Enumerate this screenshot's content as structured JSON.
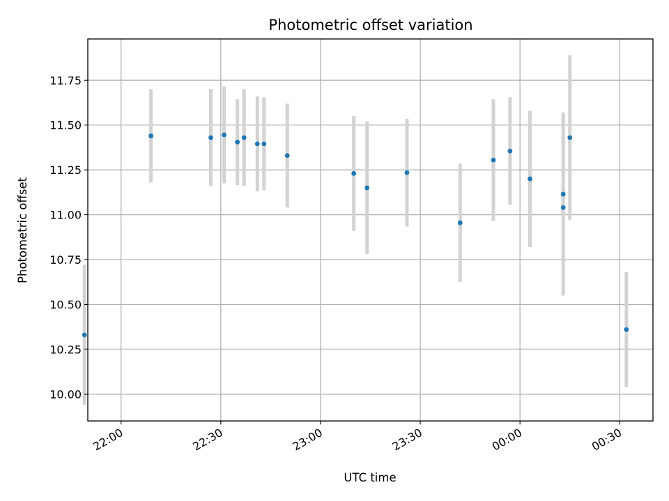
{
  "chart_data": {
    "type": "scatter",
    "title": "Photometric offset variation",
    "xlabel": "UTC time",
    "ylabel": "Photometric offset",
    "x_is_time": true,
    "xlim": [
      "21:50",
      "00:40"
    ],
    "ylim": [
      9.85,
      11.98
    ],
    "xticks": [
      "22:00",
      "22:30",
      "23:00",
      "23:30",
      "00:00",
      "00:30"
    ],
    "yticks": [
      "10.00",
      "10.25",
      "10.50",
      "10.75",
      "11.00",
      "11.25",
      "11.50",
      "11.75"
    ],
    "grid": true,
    "colors": {
      "point": "#1f77b4",
      "errorbar": "#d3d3d3",
      "grid": "#b0b0b0"
    },
    "points": [
      {
        "x": "21:49",
        "y": 10.33,
        "err": 0.39
      },
      {
        "x": "22:09",
        "y": 11.44,
        "err": 0.26
      },
      {
        "x": "22:27",
        "y": 11.43,
        "err": 0.27
      },
      {
        "x": "22:31",
        "y": 11.445,
        "err": 0.27
      },
      {
        "x": "22:35",
        "y": 11.405,
        "err": 0.24
      },
      {
        "x": "22:37",
        "y": 11.43,
        "err": 0.27
      },
      {
        "x": "22:41",
        "y": 11.395,
        "err": 0.265
      },
      {
        "x": "22:43",
        "y": 11.395,
        "err": 0.26
      },
      {
        "x": "22:50",
        "y": 11.33,
        "err": 0.29
      },
      {
        "x": "23:10",
        "y": 11.23,
        "err": 0.32
      },
      {
        "x": "23:14",
        "y": 11.15,
        "err": 0.37
      },
      {
        "x": "23:26",
        "y": 11.235,
        "err": 0.3
      },
      {
        "x": "23:42",
        "y": 10.955,
        "err": 0.33
      },
      {
        "x": "23:52",
        "y": 11.305,
        "err": 0.34
      },
      {
        "x": "23:57",
        "y": 11.355,
        "err": 0.3
      },
      {
        "x": "00:03",
        "y": 11.2,
        "err": 0.38
      },
      {
        "x": "00:13",
        "y": 11.04,
        "err": 0.49
      },
      {
        "x": "00:13",
        "y": 11.115,
        "err": 0.455
      },
      {
        "x": "00:15",
        "y": 11.43,
        "err": 0.46
      },
      {
        "x": "00:32",
        "y": 10.36,
        "err": 0.32
      }
    ]
  }
}
